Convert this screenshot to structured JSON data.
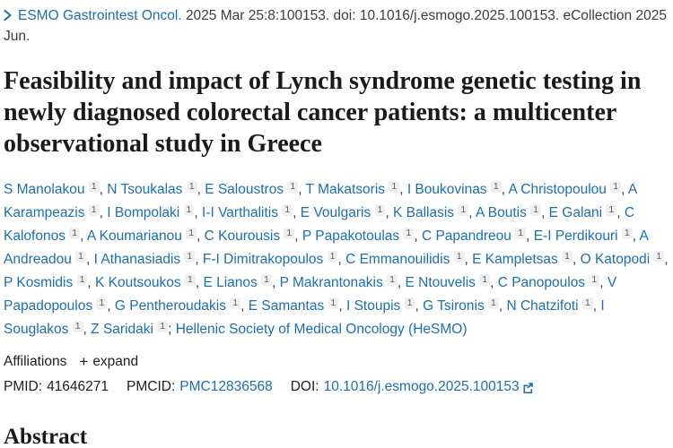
{
  "journal": {
    "name": "ESMO Gastrointest Oncol.",
    "citation": "2025 Mar 25:8:100153. doi: 10.1016/j.esmogo.2025.100153. eCollection 2025 Jun."
  },
  "title": "Feasibility and impact of Lynch syndrome genetic testing in newly diagnosed colorectal cancer patients: a multicenter observational study in Greece",
  "authors": [
    {
      "name": "S Manolakou",
      "sup": "1"
    },
    {
      "name": "N Tsoukalas",
      "sup": "1"
    },
    {
      "name": "E Saloustros",
      "sup": "1"
    },
    {
      "name": "T Makatsoris",
      "sup": "1"
    },
    {
      "name": "I Boukovinas",
      "sup": "1"
    },
    {
      "name": "A Christopoulou",
      "sup": "1"
    },
    {
      "name": "A Karampeazis",
      "sup": "1"
    },
    {
      "name": "I Bompolaki",
      "sup": "1"
    },
    {
      "name": "I-I Varthalitis",
      "sup": "1"
    },
    {
      "name": "E Voulgaris",
      "sup": "1"
    },
    {
      "name": "K Ballasis",
      "sup": "1"
    },
    {
      "name": "A Boutis",
      "sup": "1"
    },
    {
      "name": "E Galani",
      "sup": "1"
    },
    {
      "name": "C Kalofonos",
      "sup": "1"
    },
    {
      "name": "A Koumarianou",
      "sup": "1"
    },
    {
      "name": "C Kourousis",
      "sup": "1"
    },
    {
      "name": "P Papakotoulas",
      "sup": "1"
    },
    {
      "name": "C Papandreou",
      "sup": "1"
    },
    {
      "name": "E-I Perdikouri",
      "sup": "1"
    },
    {
      "name": "A Andreadou",
      "sup": "1"
    },
    {
      "name": "I Athanasiadis",
      "sup": "1"
    },
    {
      "name": "F-I Dimitrakopoulos",
      "sup": "1"
    },
    {
      "name": "C Emmanouilidis",
      "sup": "1"
    },
    {
      "name": "E Kampletsas",
      "sup": "1"
    },
    {
      "name": "O Katopodi",
      "sup": "1"
    },
    {
      "name": "P Kosmidis",
      "sup": "1"
    },
    {
      "name": "K Koutsoukos",
      "sup": "1"
    },
    {
      "name": "E Lianos",
      "sup": "1"
    },
    {
      "name": "P Makrantonakis",
      "sup": "1"
    },
    {
      "name": "E Ntouvelis",
      "sup": "1"
    },
    {
      "name": "C Panopoulos",
      "sup": "1"
    },
    {
      "name": "V Papadopoulos",
      "sup": "1"
    },
    {
      "name": "G Pentheroudakis",
      "sup": "1"
    },
    {
      "name": "E Samantas",
      "sup": "1"
    },
    {
      "name": "I Stoupis",
      "sup": "1"
    },
    {
      "name": "G Tsironis",
      "sup": "1"
    },
    {
      "name": "N Chatzifoti",
      "sup": "1"
    },
    {
      "name": "I Souglakos",
      "sup": "1"
    },
    {
      "name": "Z Saridaki",
      "sup": "1"
    }
  ],
  "collaboration": "Hellenic Society of Medical Oncology (HeSMO)",
  "affiliations": {
    "label": "Affiliations",
    "plus": "+",
    "expand_label": "expand"
  },
  "identifiers": {
    "pmid_label": "PMID:",
    "pmid": "41646271",
    "pmcid_label": "PMCID:",
    "pmcid": "PMC12836568",
    "doi_label": "DOI:",
    "doi": "10.1016/j.esmogo.2025.100153"
  },
  "abstract_heading": "Abstract",
  "icons": {
    "chevron_right": "chevron-right-icon",
    "plus": "plus-icon",
    "external_link": "external-link-icon"
  },
  "colors": {
    "link": "#1a6fb5",
    "body_text": "#3c3c3c",
    "title_text": "#1a1a1a",
    "sup_badge_bg": "#efefef",
    "sup_badge_text": "#5b616b"
  }
}
